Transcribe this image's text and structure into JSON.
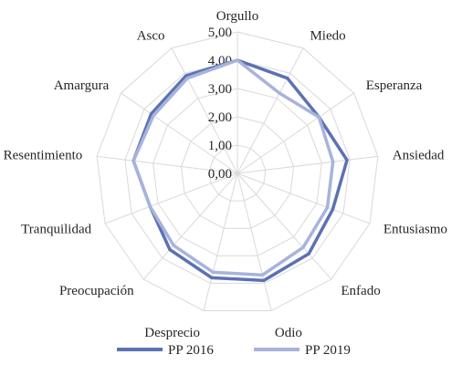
{
  "chart_data": {
    "type": "radar",
    "categories": [
      "Orgullo",
      "Miedo",
      "Esperanza",
      "Ansiedad",
      "Entusiasmo",
      "Enfado",
      "Odio",
      "Desprecio",
      "Preocupación",
      "Tranquilidad",
      "Resentimiento",
      "Amargura",
      "Asco"
    ],
    "series": [
      {
        "name": "PP 2016",
        "color": "#5b72b3",
        "values": [
          4.0,
          3.8,
          3.5,
          3.9,
          3.6,
          3.8,
          3.9,
          3.8,
          3.6,
          3.3,
          3.7,
          3.7,
          3.9
        ]
      },
      {
        "name": "PP 2019",
        "color": "#a8b3dc",
        "values": [
          4.0,
          3.2,
          3.5,
          3.4,
          3.4,
          3.5,
          3.7,
          3.6,
          3.4,
          3.3,
          3.7,
          3.6,
          3.8
        ]
      }
    ],
    "r_ticks": [
      "0,00",
      "1,00",
      "2,00",
      "3,00",
      "4,00",
      "5,00"
    ],
    "rlim": [
      0,
      5
    ],
    "grid": true,
    "legend": "bottom"
  }
}
